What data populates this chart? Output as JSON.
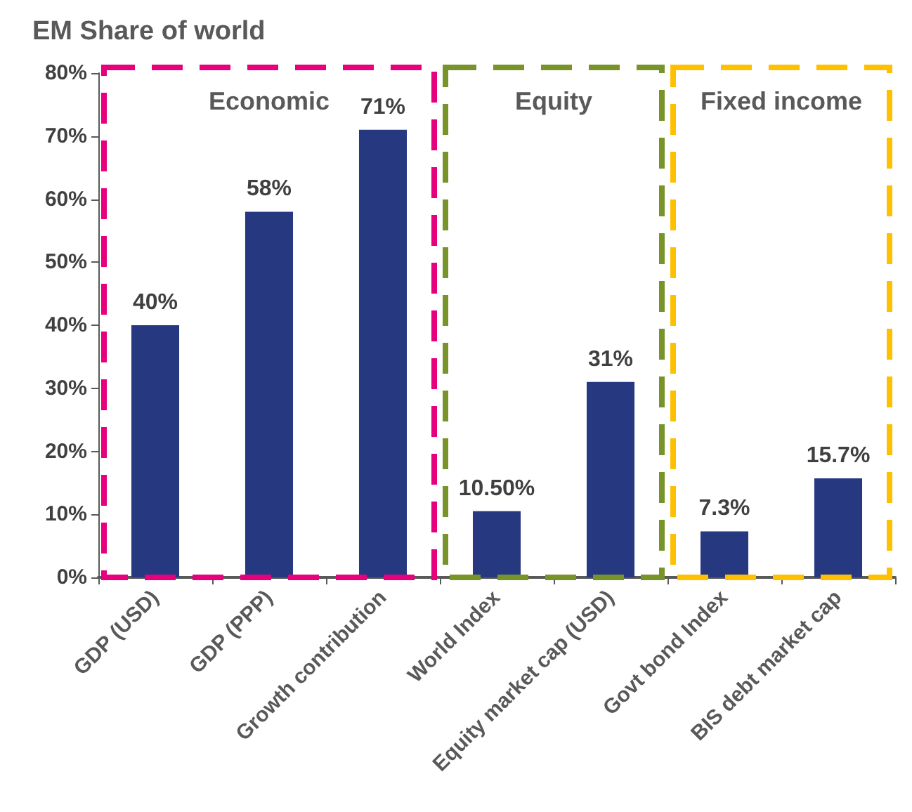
{
  "chart_data": {
    "type": "bar",
    "title": "EM Share of world",
    "categories": [
      "GDP (USD)",
      "GDP (PPP)",
      "Growth contribution",
      "World Index",
      "Equity market cap (USD)",
      "Govt bond Index",
      "BIS debt market cap"
    ],
    "values": [
      40,
      58,
      71,
      10.5,
      31,
      7.3,
      15.7
    ],
    "value_labels": [
      "40%",
      "58%",
      "71%",
      "10.50%",
      "31%",
      "7.3%",
      "15.7%"
    ],
    "color": "#253880",
    "ylim": [
      0,
      80
    ],
    "yticks": [
      {
        "value": 0,
        "label": "0%"
      },
      {
        "value": 10,
        "label": "10%"
      },
      {
        "value": 20,
        "label": "20%"
      },
      {
        "value": 30,
        "label": "30%"
      },
      {
        "value": 40,
        "label": "40%"
      },
      {
        "value": 50,
        "label": "50%"
      },
      {
        "value": 60,
        "label": "60%"
      },
      {
        "value": 70,
        "label": "70%"
      },
      {
        "value": 80,
        "label": "80%"
      }
    ],
    "grid": false,
    "annotations": [
      "Economic",
      "Equity",
      "Fixed income"
    ]
  }
}
